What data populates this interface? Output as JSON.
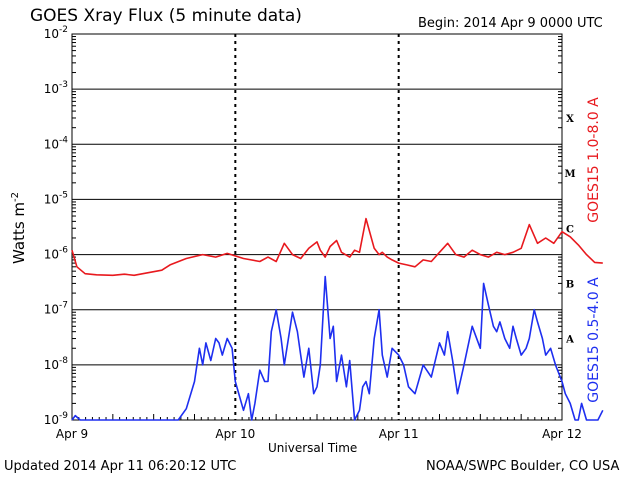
{
  "header": {
    "title": "GOES Xray Flux (5 minute data)",
    "begin": "Begin:  2014 Apr 9 0000 UTC"
  },
  "footer": {
    "updated": "Updated 2014 Apr 11 06:20:12 UTC",
    "credit": "NOAA/SWPC Boulder, CO USA"
  },
  "colors": {
    "long": "#e8191e",
    "short": "#1e2ff0"
  },
  "chart_data": {
    "type": "line",
    "title": "GOES Xray Flux (5 minute data)",
    "xlabel": "Universal Time",
    "ylabel": "Watts m",
    "ylabel_sup": "-2",
    "yscale": "log",
    "ylim": [
      1e-09,
      0.01
    ],
    "y_ticks": [
      {
        "base": "10",
        "exp": "-2",
        "value": 0.01
      },
      {
        "base": "10",
        "exp": "-3",
        "value": 0.001
      },
      {
        "base": "10",
        "exp": "-4",
        "value": 0.0001
      },
      {
        "base": "10",
        "exp": "-5",
        "value": 1e-05
      },
      {
        "base": "10",
        "exp": "-6",
        "value": 1e-06
      },
      {
        "base": "10",
        "exp": "-7",
        "value": 1e-07
      },
      {
        "base": "10",
        "exp": "-8",
        "value": 1e-08
      },
      {
        "base": "10",
        "exp": "-9",
        "value": 1e-09
      }
    ],
    "x_ticks": [
      "Apr 9",
      "Apr 10",
      "Apr 11",
      "Apr 12"
    ],
    "flare_classes": [
      {
        "label": "X",
        "value": 0.0003
      },
      {
        "label": "M",
        "value": 3e-05
      },
      {
        "label": "C",
        "value": 3e-06
      },
      {
        "label": "B",
        "value": 3e-07
      },
      {
        "label": "A",
        "value": 3e-08
      }
    ],
    "series": [
      {
        "name": "GOES15 1.0-8.0 A",
        "x": [
          0,
          0.03,
          0.08,
          0.15,
          0.25,
          0.32,
          0.38,
          0.45,
          0.55,
          0.6,
          0.7,
          0.8,
          0.88,
          0.95,
          1.05,
          1.15,
          1.2,
          1.25,
          1.3,
          1.35,
          1.4,
          1.45,
          1.5,
          1.52,
          1.55,
          1.58,
          1.62,
          1.65,
          1.7,
          1.73,
          1.76,
          1.8,
          1.85,
          1.88,
          1.9,
          1.93,
          1.96,
          2.0,
          2.05,
          2.1,
          2.15,
          2.2,
          2.25,
          2.3,
          2.35,
          2.4,
          2.45,
          2.5,
          2.55,
          2.6,
          2.65,
          2.7,
          2.75,
          2.8,
          2.85,
          2.9,
          2.95,
          3.0,
          3.05,
          3.1,
          3.15,
          3.2,
          3.25
        ],
        "y": [
          1.2e-06,
          6e-07,
          4.5e-07,
          4.3e-07,
          4.2e-07,
          4.4e-07,
          4.2e-07,
          4.6e-07,
          5.2e-07,
          6.5e-07,
          8.5e-07,
          1e-06,
          9e-07,
          1.05e-06,
          8.5e-07,
          7.5e-07,
          9e-07,
          7.5e-07,
          1.6e-06,
          1e-06,
          8.5e-07,
          1.3e-06,
          1.7e-06,
          1.2e-06,
          9e-07,
          1.4e-06,
          1.8e-06,
          1.1e-06,
          9e-07,
          1.2e-06,
          1.1e-06,
          4.5e-06,
          1.3e-06,
          1e-06,
          1.1e-06,
          9e-07,
          8e-07,
          7e-07,
          6.5e-07,
          6e-07,
          8e-07,
          7.5e-07,
          1.1e-06,
          1.6e-06,
          1e-06,
          9e-07,
          1.2e-06,
          1e-06,
          9e-07,
          1.1e-06,
          1e-06,
          1.1e-06,
          1.3e-06,
          3.5e-06,
          1.6e-06,
          2e-06,
          1.6e-06,
          2.6e-06,
          2.1e-06,
          1.5e-06,
          1e-06,
          7.2e-07,
          7e-07
        ]
      },
      {
        "name": "GOES15 0.5-4.0 A",
        "x": [
          0,
          0.02,
          0.05,
          0.1,
          0.2,
          0.3,
          0.4,
          0.5,
          0.55,
          0.6,
          0.65,
          0.7,
          0.75,
          0.78,
          0.8,
          0.82,
          0.85,
          0.88,
          0.9,
          0.92,
          0.95,
          0.98,
          1.0,
          1.05,
          1.08,
          1.1,
          1.12,
          1.15,
          1.18,
          1.2,
          1.22,
          1.25,
          1.28,
          1.3,
          1.35,
          1.38,
          1.4,
          1.42,
          1.45,
          1.48,
          1.5,
          1.52,
          1.55,
          1.58,
          1.6,
          1.62,
          1.65,
          1.68,
          1.7,
          1.73,
          1.76,
          1.78,
          1.8,
          1.82,
          1.85,
          1.88,
          1.9,
          1.93,
          1.96,
          2.0,
          2.03,
          2.06,
          2.1,
          2.15,
          2.2,
          2.25,
          2.28,
          2.3,
          2.33,
          2.36,
          2.4,
          2.45,
          2.5,
          2.52,
          2.55,
          2.58,
          2.6,
          2.62,
          2.65,
          2.68,
          2.7,
          2.72,
          2.75,
          2.78,
          2.8,
          2.83,
          2.85,
          2.88,
          2.9,
          2.93,
          2.96,
          3.0,
          3.02,
          3.05,
          3.08,
          3.1,
          3.12,
          3.15,
          3.18,
          3.2,
          3.22,
          3.25
        ],
        "y": [
          1e-09,
          1.2e-09,
          1e-09,
          1e-09,
          1e-09,
          1e-09,
          1e-09,
          1e-09,
          1e-09,
          1e-09,
          1e-09,
          1.6e-09,
          5e-09,
          2e-08,
          1e-08,
          2.5e-08,
          1.2e-08,
          3e-08,
          2.5e-08,
          1.5e-08,
          3e-08,
          2e-08,
          5e-09,
          1.5e-09,
          3e-09,
          1e-09,
          2e-09,
          8e-09,
          5e-09,
          5e-09,
          4e-08,
          1e-07,
          3e-08,
          1e-08,
          9e-08,
          4e-08,
          1.5e-08,
          6e-09,
          2e-08,
          3e-09,
          4e-09,
          1e-08,
          4e-07,
          3e-08,
          5e-08,
          5e-09,
          1.5e-08,
          4e-09,
          1.2e-08,
          1e-09,
          1.5e-09,
          4e-09,
          5e-09,
          3e-09,
          3e-08,
          1e-07,
          1.5e-08,
          6e-09,
          2e-08,
          1.5e-08,
          1e-08,
          4e-09,
          3e-09,
          1e-08,
          6e-09,
          2.5e-08,
          1.5e-08,
          4e-08,
          1.2e-08,
          3e-09,
          1e-08,
          5e-08,
          2e-08,
          3e-07,
          1.2e-07,
          5e-08,
          4e-08,
          6e-08,
          3e-08,
          2e-08,
          5e-08,
          3e-08,
          1.5e-08,
          2e-08,
          3e-08,
          1e-07,
          6e-08,
          3e-08,
          1.5e-08,
          2e-08,
          1e-08,
          5e-09,
          3e-09,
          2e-09,
          1e-09,
          1e-09,
          2e-09,
          1e-09,
          1e-09,
          1e-09,
          1e-09,
          1.5e-09
        ]
      }
    ],
    "grid": true
  }
}
